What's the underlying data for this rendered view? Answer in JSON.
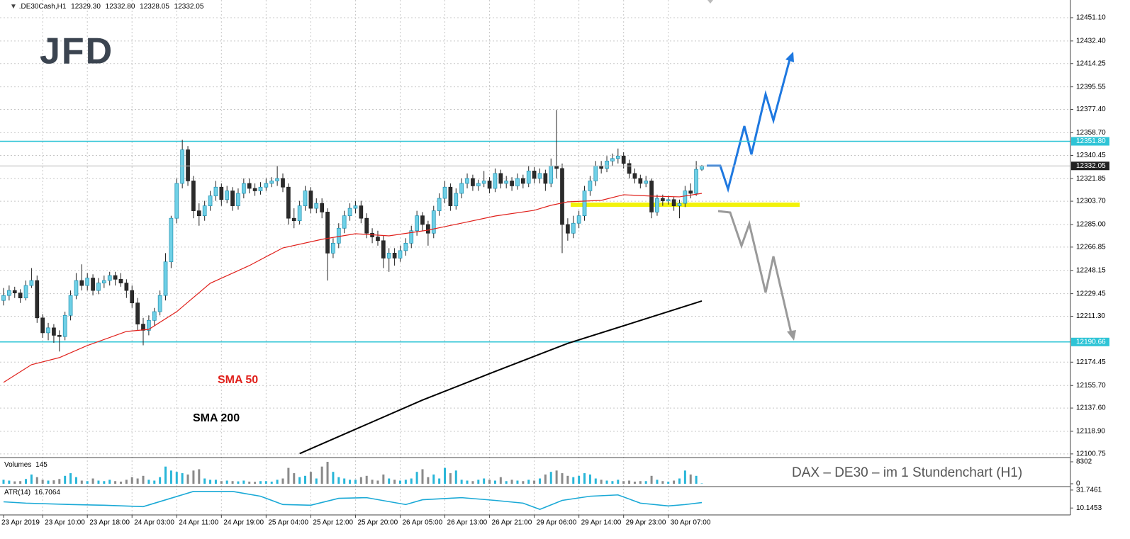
{
  "chart_data": [
    {
      "type": "candlestick",
      "title": ".DE30Cash,H1",
      "ohlc_labels": [
        "12329.30",
        "12332.80",
        "12328.05",
        "12332.05"
      ],
      "logo": "JFD",
      "note": "DAX – DE30 –  im  1 Stundenchart (H1)",
      "up_color": "#6fd0e6",
      "down_color": "#2b2b2b",
      "categories": [
        "23 Apr 2019",
        null,
        null,
        null,
        null,
        null,
        null,
        "23 Apr 10:00",
        null,
        null,
        null,
        null,
        null,
        null,
        null,
        "23 Apr 18:00",
        null,
        null,
        null,
        null,
        null,
        null,
        null,
        "24 Apr 03:00",
        null,
        null,
        null,
        null,
        null,
        null,
        null,
        "24 Apr 11:00",
        null,
        null,
        null,
        null,
        null,
        null,
        null,
        "24 Apr 19:00",
        null,
        null,
        null,
        null,
        null,
        null,
        null,
        "25 Apr 04:00",
        null,
        null,
        null,
        null,
        null,
        null,
        null,
        "25 Apr 12:00",
        null,
        null,
        null,
        null,
        null,
        null,
        null,
        "25 Apr 20:00",
        null,
        null,
        null,
        null,
        null,
        null,
        null,
        "26 Apr 05:00",
        null,
        null,
        null,
        null,
        null,
        null,
        null,
        "26 Apr 13:00",
        null,
        null,
        null,
        null,
        null,
        null,
        null,
        "26 Apr 21:00",
        null,
        null,
        null,
        null,
        null,
        null,
        null,
        "29 Apr 06:00",
        null,
        null,
        null,
        null,
        null,
        null,
        null,
        "29 Apr 14:00",
        null,
        null,
        null,
        null,
        null,
        null,
        null,
        "29 Apr 23:00",
        null,
        null,
        null,
        null,
        null,
        null,
        null,
        "30 Apr 07:00",
        null,
        null,
        null,
        null,
        null,
        null
      ],
      "ohlc": [
        [
          12224,
          12234,
          12220,
          12228
        ],
        [
          12228,
          12236,
          12224,
          12232
        ],
        [
          12232,
          12235,
          12226,
          12230
        ],
        [
          12230,
          12233,
          12222,
          12226
        ],
        [
          12226,
          12240,
          12224,
          12236
        ],
        [
          12236,
          12250,
          12234,
          12240
        ],
        [
          12240,
          12244,
          12206,
          12210
        ],
        [
          12210,
          12213,
          12194,
          12198
        ],
        [
          12198,
          12206,
          12192,
          12202
        ],
        [
          12202,
          12205,
          12190,
          12196
        ],
        [
          12196,
          12200,
          12183,
          12195
        ],
        [
          12195,
          12215,
          12192,
          12212
        ],
        [
          12212,
          12232,
          12208,
          12228
        ],
        [
          12228,
          12246,
          12225,
          12240
        ],
        [
          12240,
          12253,
          12232,
          12236
        ],
        [
          12236,
          12246,
          12232,
          12242
        ],
        [
          12242,
          12245,
          12228,
          12232
        ],
        [
          12232,
          12242,
          12229,
          12238
        ],
        [
          12238,
          12244,
          12234,
          12240
        ],
        [
          12240,
          12247,
          12236,
          12244
        ],
        [
          12244,
          12247,
          12236,
          12241
        ],
        [
          12241,
          12246,
          12235,
          12238
        ],
        [
          12238,
          12241,
          12226,
          12232
        ],
        [
          12232,
          12236,
          12218,
          12222
        ],
        [
          12222,
          12226,
          12200,
          12205
        ],
        [
          12205,
          12210,
          12188,
          12200
        ],
        [
          12200,
          12212,
          12196,
          12208
        ],
        [
          12208,
          12218,
          12204,
          12215
        ],
        [
          12215,
          12232,
          12212,
          12228
        ],
        [
          12228,
          12262,
          12224,
          12255
        ],
        [
          12255,
          12292,
          12250,
          12290
        ],
        [
          12290,
          12322,
          12286,
          12318
        ],
        [
          12318,
          12353,
          12314,
          12345
        ],
        [
          12345,
          12348,
          12316,
          12320
        ],
        [
          12320,
          12324,
          12290,
          12296
        ],
        [
          12296,
          12302,
          12284,
          12292
        ],
        [
          12292,
          12304,
          12288,
          12300
        ],
        [
          12300,
          12312,
          12296,
          12308
        ],
        [
          12308,
          12320,
          12304,
          12315
        ],
        [
          12315,
          12318,
          12300,
          12305
        ],
        [
          12305,
          12316,
          12302,
          12312
        ],
        [
          12312,
          12315,
          12296,
          12300
        ],
        [
          12300,
          12314,
          12297,
          12310
        ],
        [
          12310,
          12322,
          12306,
          12318
        ],
        [
          12318,
          12322,
          12310,
          12314
        ],
        [
          12314,
          12318,
          12308,
          12312
        ],
        [
          12312,
          12319,
          12309,
          12315
        ],
        [
          12315,
          12322,
          12312,
          12318
        ],
        [
          12318,
          12323,
          12315,
          12320
        ],
        [
          12320,
          12332,
          12316,
          12322
        ],
        [
          12322,
          12326,
          12311,
          12315
        ],
        [
          12315,
          12318,
          12285,
          12290
        ],
        [
          12290,
          12298,
          12282,
          12288
        ],
        [
          12288,
          12304,
          12285,
          12300
        ],
        [
          12300,
          12316,
          12296,
          12312
        ],
        [
          12312,
          12315,
          12294,
          12298
        ],
        [
          12298,
          12306,
          12294,
          12302
        ],
        [
          12302,
          12306,
          12290,
          12295
        ],
        [
          12295,
          12298,
          12240,
          12262
        ],
        [
          12262,
          12274,
          12258,
          12270
        ],
        [
          12270,
          12286,
          12266,
          12282
        ],
        [
          12282,
          12296,
          12278,
          12292
        ],
        [
          12292,
          12302,
          12288,
          12298
        ],
        [
          12298,
          12304,
          12294,
          12300
        ],
        [
          12300,
          12304,
          12286,
          12290
        ],
        [
          12290,
          12294,
          12274,
          12278
        ],
        [
          12278,
          12282,
          12270,
          12275
        ],
        [
          12275,
          12280,
          12268,
          12272
        ],
        [
          12272,
          12276,
          12250,
          12258
        ],
        [
          12258,
          12266,
          12247,
          12262
        ],
        [
          12262,
          12266,
          12252,
          12258
        ],
        [
          12258,
          12268,
          12255,
          12264
        ],
        [
          12264,
          12274,
          12260,
          12270
        ],
        [
          12270,
          12284,
          12266,
          12280
        ],
        [
          12280,
          12296,
          12276,
          12292
        ],
        [
          12292,
          12295,
          12280,
          12285
        ],
        [
          12285,
          12288,
          12268,
          12278
        ],
        [
          12278,
          12300,
          12274,
          12296
        ],
        [
          12296,
          12310,
          12292,
          12306
        ],
        [
          12306,
          12320,
          12302,
          12315
        ],
        [
          12315,
          12318,
          12296,
          12300
        ],
        [
          12300,
          12314,
          12297,
          12310
        ],
        [
          12310,
          12322,
          12306,
          12318
        ],
        [
          12318,
          12326,
          12314,
          12322
        ],
        [
          12322,
          12325,
          12312,
          12316
        ],
        [
          12316,
          12321,
          12312,
          12318
        ],
        [
          12318,
          12328,
          12315,
          12320
        ],
        [
          12320,
          12323,
          12310,
          12314
        ],
        [
          12314,
          12330,
          12311,
          12326
        ],
        [
          12326,
          12329,
          12314,
          12318
        ],
        [
          12318,
          12324,
          12314,
          12320
        ],
        [
          12320,
          12323,
          12312,
          12316
        ],
        [
          12316,
          12326,
          12313,
          12322
        ],
        [
          12322,
          12325,
          12314,
          12318
        ],
        [
          12318,
          12332,
          12315,
          12328
        ],
        [
          12328,
          12331,
          12318,
          12322
        ],
        [
          12322,
          12330,
          12318,
          12326
        ],
        [
          12326,
          12329,
          12312,
          12318
        ],
        [
          12318,
          12338,
          12315,
          12332
        ],
        [
          12332,
          12377,
          12322,
          12330
        ],
        [
          12330,
          12334,
          12262,
          12285
        ],
        [
          12285,
          12290,
          12272,
          12278
        ],
        [
          12278,
          12292,
          12274,
          12286
        ],
        [
          12286,
          12296,
          12282,
          12292
        ],
        [
          12292,
          12316,
          12288,
          12312
        ],
        [
          12312,
          12324,
          12308,
          12320
        ],
        [
          12320,
          12336,
          12316,
          12332
        ],
        [
          12332,
          12336,
          12326,
          12330
        ],
        [
          12330,
          12340,
          12327,
          12336
        ],
        [
          12336,
          12342,
          12332,
          12338
        ],
        [
          12338,
          12346,
          12334,
          12340
        ],
        [
          12340,
          12343,
          12330,
          12334
        ],
        [
          12334,
          12337,
          12322,
          12326
        ],
        [
          12326,
          12330,
          12318,
          12322
        ],
        [
          12322,
          12325,
          12314,
          12318
        ],
        [
          12318,
          12324,
          12315,
          12320
        ],
        [
          12320,
          12322,
          12290,
          12295
        ],
        [
          12295,
          12309,
          12292,
          12306
        ],
        [
          12306,
          12309,
          12300,
          12304
        ],
        [
          12304,
          12308,
          12301,
          12305
        ],
        [
          12305,
          12307,
          12296,
          12300
        ],
        [
          12300,
          12305,
          12290,
          12302
        ],
        [
          12302,
          12316,
          12299,
          12312
        ],
        [
          12312,
          12318,
          12306,
          12310
        ],
        [
          12310,
          12336,
          12308,
          12329.3
        ],
        [
          12329.3,
          12332.8,
          12328.05,
          12332.05
        ]
      ],
      "lines": [
        {
          "name": "SMA 50",
          "color": "#e0201b",
          "x": [
            0,
            5,
            10,
            15,
            22,
            26,
            31,
            37,
            44,
            50,
            57,
            63,
            69,
            76,
            82,
            88,
            95,
            98,
            101,
            107,
            111,
            116,
            121,
            125
          ],
          "values": [
            12158.2,
            12172.4,
            12178.1,
            12187.8,
            12199.1,
            12200.8,
            12215.0,
            12237.8,
            12252.0,
            12266.2,
            12273.1,
            12277.6,
            12275.9,
            12280.5,
            12286.1,
            12291.8,
            12296.4,
            12300.4,
            12303.2,
            12304.4,
            12308.9,
            12307.8,
            12307.2,
            12310.0
          ]
        },
        {
          "name": "SMA 200",
          "color": "#000000",
          "x": [
            53,
            75,
            88,
            101,
            113,
            125
          ],
          "values": [
            12101,
            12144,
            12167,
            12189.5,
            12206.5,
            12223.6
          ]
        }
      ],
      "hlines": [
        {
          "value": 12351.8,
          "label": "12351.80",
          "color": "#2ec4d6"
        },
        {
          "value": 12190.66,
          "label": "12190.66",
          "color": "#2ec4d6"
        }
      ],
      "ylim": [
        12098.4,
        12465.3
      ],
      "yticks": [
        {
          "value": 12451.1,
          "label": "12451.10"
        },
        {
          "value": 12432.4,
          "label": "12432.40"
        },
        12414.25,
        12395.55,
        {
          "value": 12377.4,
          "label": "12377.40"
        },
        {
          "value": 12358.7,
          "label": "12358.70"
        },
        12340.45,
        12321.85,
        {
          "value": 12303.7,
          "label": "12303.70"
        },
        {
          "value": 12285,
          "label": "12285.00"
        },
        12266.85,
        12248.15,
        12229.45,
        {
          "value": 12211.3,
          "label": "12211.30"
        },
        12174.45,
        {
          "value": 12155.7,
          "label": "12155.70"
        },
        {
          "value": 12137.6,
          "label": "12137.60"
        },
        {
          "value": 12118.9,
          "label": "12118.90"
        },
        12100.75
      ],
      "grid": true
    },
    {
      "type": "bar",
      "title": "Volumes",
      "up_color": "#29b6d8",
      "down_color": "#8a8a8a",
      "values": [
        1500,
        1200,
        900,
        1000,
        1800,
        3500,
        2500,
        1500,
        1200,
        1300,
        1800,
        3000,
        4000,
        2500,
        1200,
        1000,
        2000,
        1200,
        1000,
        1500,
        1000,
        800,
        1500,
        2500,
        2000,
        3000,
        1500,
        1200,
        2500,
        6500,
        5000,
        4500,
        4000,
        3500,
        5000,
        5500,
        2000,
        1500,
        1500,
        1000,
        1200,
        1000,
        900,
        1200,
        800,
        700,
        1000,
        1000,
        800,
        1500,
        2000,
        6000,
        4000,
        2500,
        3000,
        4500,
        2000,
        6500,
        8300,
        4500,
        2500,
        2000,
        1500,
        1500,
        2500,
        3000,
        1500,
        1200,
        3500,
        2000,
        1500,
        1200,
        1500,
        2000,
        4500,
        5500,
        2500,
        3500,
        2000,
        6000,
        4000,
        5000,
        1500,
        1200,
        1000,
        1500,
        2000,
        1500,
        1200,
        2500,
        1000,
        1500,
        1200,
        1000,
        1500,
        1200,
        2000,
        3500,
        4500,
        5000,
        4000,
        3000,
        2500,
        3000,
        4000,
        3500,
        2000,
        1500,
        1200,
        1000,
        1500,
        1000,
        1200,
        800,
        1000,
        1000,
        3000,
        1500,
        1000,
        800,
        1200,
        2000,
        5000,
        3500,
        3000,
        145
      ],
      "ylim": [
        -803,
        9373
      ],
      "yticks": [
        8302,
        0
      ]
    },
    {
      "type": "line",
      "title": "ATR(14)",
      "color": "#1aa9d6",
      "x": [
        0,
        4,
        12,
        18,
        25,
        34,
        41,
        46,
        50,
        55,
        60,
        65,
        72,
        75,
        82,
        88,
        93,
        96,
        100,
        105,
        110,
        114,
        119,
        122,
        125
      ],
      "values": [
        17.6,
        16.0,
        14.3,
        13.5,
        11.8,
        30.1,
        30.1,
        24.3,
        14.3,
        13.5,
        21.8,
        22.6,
        14.3,
        20.1,
        22.6,
        19.3,
        16.0,
        8.5,
        19.3,
        24.3,
        25.9,
        16.0,
        12.6,
        14.3,
        16.7064
      ],
      "ylim": [
        2.67,
        35.07
      ],
      "yticks": [
        31.7461,
        10.1453
      ]
    }
  ]
}
